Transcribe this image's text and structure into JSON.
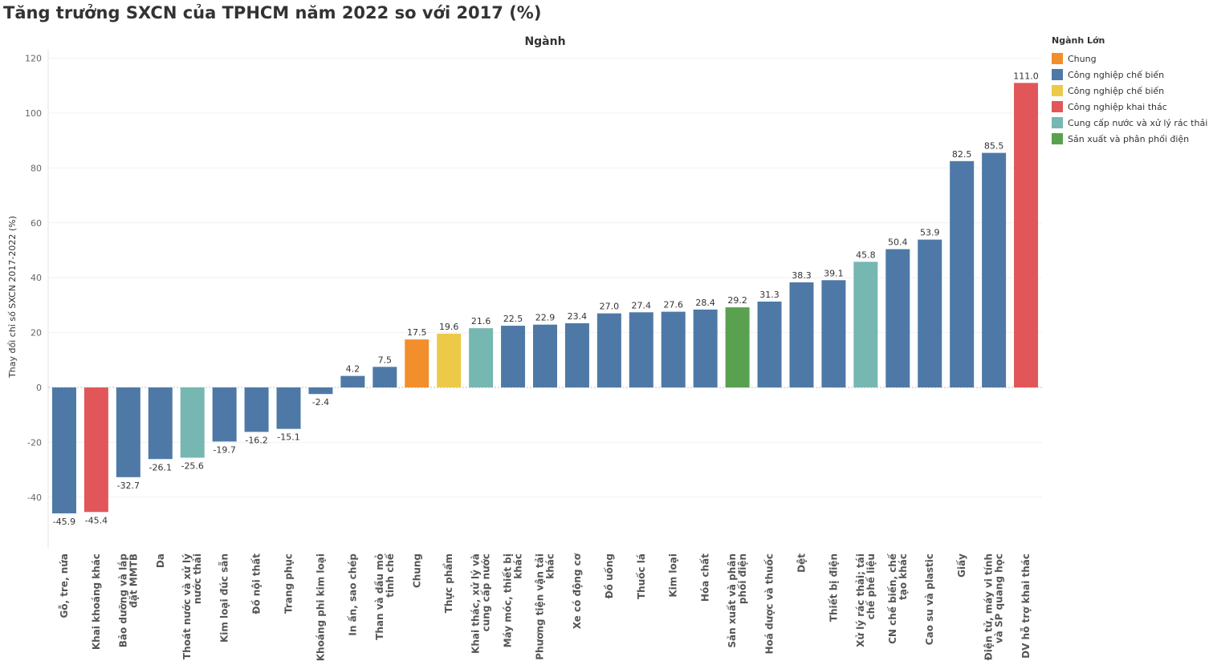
{
  "title": "Tăng trưởng SXCN của TPHCM năm 2022 so với 2017 (%)",
  "chart_data": {
    "type": "bar",
    "header": "Ngành",
    "ylabel": "Thay đổi chỉ số SXCN 2017-2022 (%)",
    "xlabel": "",
    "ylim": [
      -60,
      125
    ],
    "yticks": [
      120,
      100,
      80,
      60,
      40,
      20,
      0,
      -20,
      -40
    ],
    "grid": true,
    "legend_position": "right",
    "legend_title": "Ngành Lớn",
    "legend": [
      {
        "name": "Chung",
        "color": "#f28e2b"
      },
      {
        "name": "Công nghiệp chế biến",
        "color": "#4e79a7"
      },
      {
        "name": "Công nghiệp chế biến",
        "color": "#edc948"
      },
      {
        "name": "Công nghiệp khai thác",
        "color": "#e15759"
      },
      {
        "name": "Cung cấp nước và xử lý rác thải",
        "color": "#76b7b2"
      },
      {
        "name": "Sản xuất và phân phối điện",
        "color": "#59a14f"
      }
    ],
    "categories": [
      [
        "Gỗ, tre, nứa"
      ],
      [
        "Khai khoáng khác"
      ],
      [
        "Bảo dưỡng và lắp",
        "đặt MMTB"
      ],
      [
        "Da"
      ],
      [
        "Thoát nước và xử lý",
        "nước thải"
      ],
      [
        "Kim loại đúc sẵn"
      ],
      [
        "Đồ nội thất"
      ],
      [
        "Trang phục"
      ],
      [
        "Khoáng phi kim loại"
      ],
      [
        "In ấn, sao chép"
      ],
      [
        "Than và dầu mỏ",
        "tinh chế"
      ],
      [
        "Chung"
      ],
      [
        "Thực phẩm"
      ],
      [
        "Khai thác, xử lý và",
        "cung cấp nước"
      ],
      [
        "Máy móc, thiết bị",
        "khác"
      ],
      [
        "Phương tiện vận tải",
        "khác"
      ],
      [
        "Xe có động cơ"
      ],
      [
        "Đồ uống"
      ],
      [
        "Thuốc lá"
      ],
      [
        "Kim loại"
      ],
      [
        "Hóa chất"
      ],
      [
        "Sản xuất và phân",
        "phối điện"
      ],
      [
        "Hoá dược và thuốc"
      ],
      [
        "Dệt"
      ],
      [
        "Thiết bị điện"
      ],
      [
        "Xử lý rác thải; tái",
        "chế phế liệu"
      ],
      [
        "CN chế biến, chế",
        "tạo khác"
      ],
      [
        "Cao su và plastic"
      ],
      [
        "Giấy"
      ],
      [
        "Điện tử, máy vi tính",
        "và SP quang học"
      ],
      [
        "DV hỗ trợ khai thác"
      ]
    ],
    "values": [
      -45.9,
      -45.4,
      -32.7,
      -26.1,
      -25.6,
      -19.7,
      -16.2,
      -15.1,
      -2.4,
      4.2,
      7.5,
      17.5,
      19.6,
      21.6,
      22.5,
      22.9,
      23.4,
      27.0,
      27.4,
      27.6,
      28.4,
      29.2,
      31.3,
      38.3,
      39.1,
      45.8,
      50.4,
      53.9,
      82.5,
      85.5,
      111.0
    ],
    "value_labels": [
      "-45.9",
      "-45.4",
      "-32.7",
      "-26.1",
      "-25.6",
      "-19.7",
      "-16.2",
      "-15.1",
      "-2.4",
      "4.2",
      "7.5",
      "17.5",
      "19.6",
      "21.6",
      "22.5",
      "22.9",
      "23.4",
      "27.0",
      "27.4",
      "27.6",
      "28.4",
      "29.2",
      "31.3",
      "38.3",
      "39.1",
      "45.8",
      "50.4",
      "53.9",
      "82.5",
      "85.5",
      "111.0"
    ],
    "group_index": [
      1,
      3,
      1,
      1,
      4,
      1,
      1,
      1,
      1,
      1,
      1,
      0,
      2,
      4,
      1,
      1,
      1,
      1,
      1,
      1,
      1,
      5,
      1,
      1,
      1,
      4,
      1,
      1,
      1,
      1,
      3
    ]
  }
}
